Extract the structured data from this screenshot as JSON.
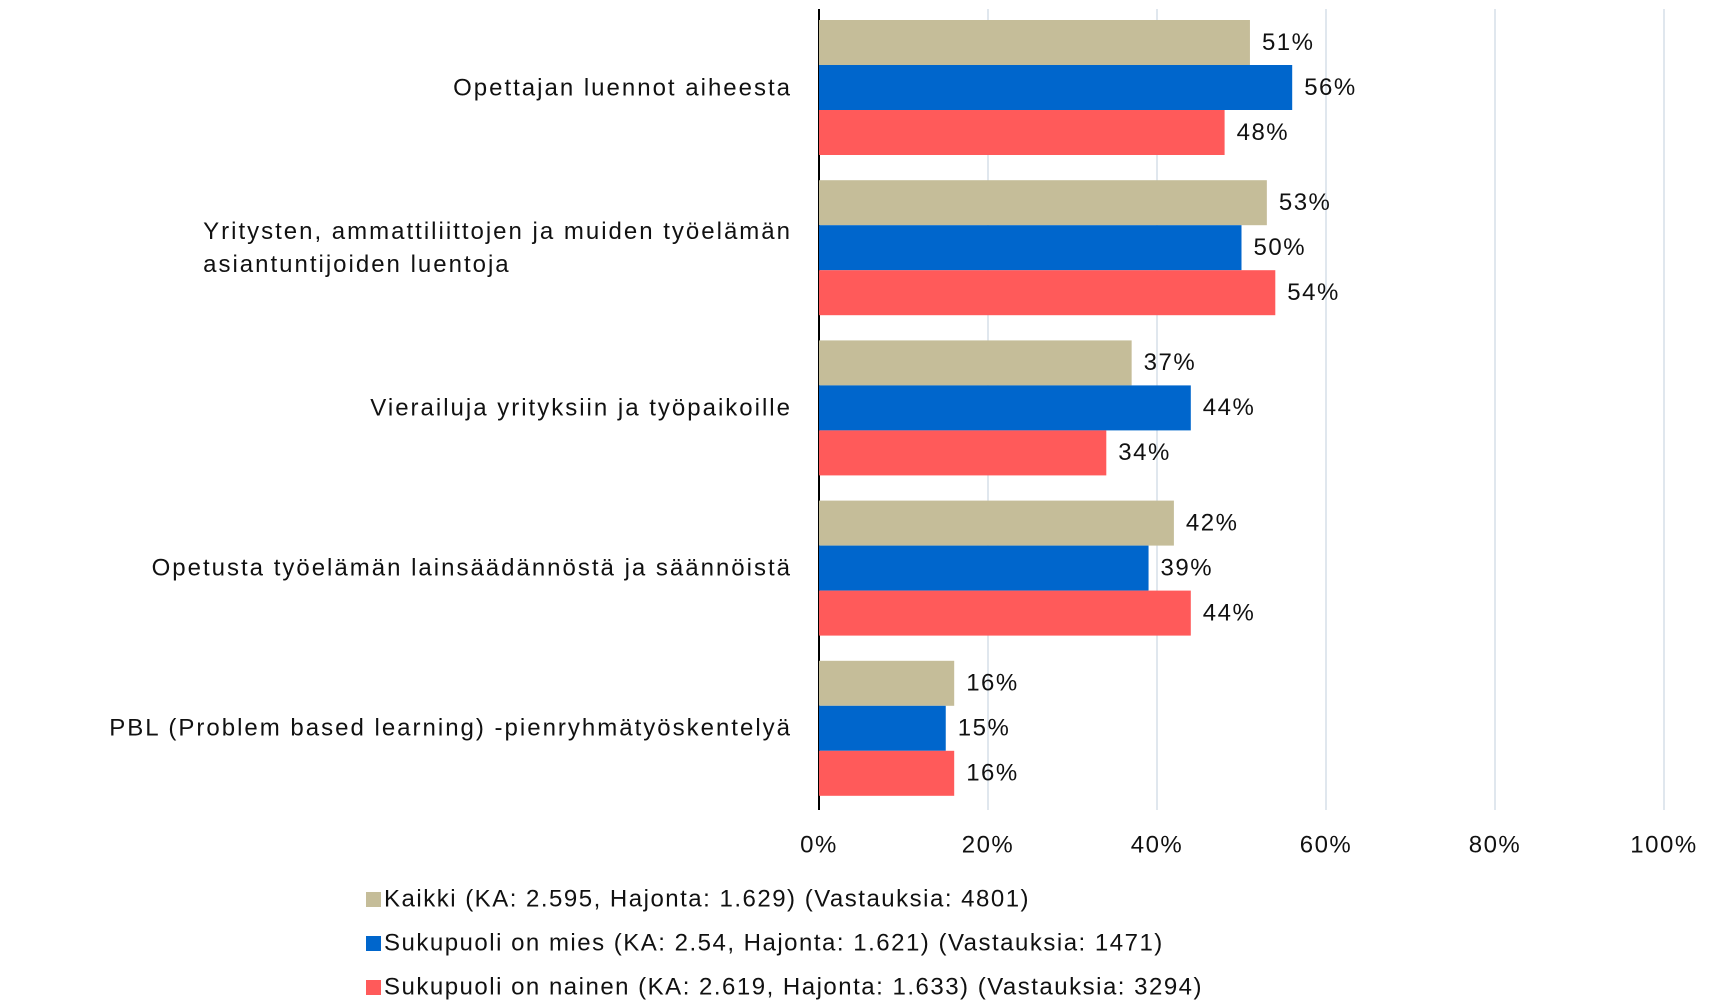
{
  "chart_data": {
    "type": "bar",
    "orientation": "horizontal",
    "categories": [
      "Opettajan luennot aiheesta",
      "Yritysten, ammattiliittojen ja muiden työelämän\nasiantuntijoiden luentoja",
      "Vierailuja yrityksiin ja työpaikoille",
      "Opetusta työelämän lainsäädännöstä ja säännöistä",
      "PBL (Problem based learning) -pienryhmätyöskentelyä"
    ],
    "series": [
      {
        "name": "Kaikki (KA: 2.595, Hajonta: 1.629) (Vastauksia: 4801)",
        "color": "#c5bd99",
        "values": [
          51,
          53,
          37,
          42,
          16
        ],
        "value_labels": [
          "51%",
          "53%",
          "37%",
          "42%",
          "16%"
        ]
      },
      {
        "name": "Sukupuoli on mies (KA: 2.54, Hajonta: 1.621) (Vastauksia: 1471)",
        "color": "#0066cc",
        "values": [
          56,
          50,
          44,
          39,
          15
        ],
        "value_labels": [
          "56%",
          "50%",
          "44%",
          "39%",
          "15%"
        ]
      },
      {
        "name": "Sukupuoli on nainen (KA: 2.619, Hajonta: 1.633) (Vastauksia: 3294)",
        "color": "#ff5a5a",
        "values": [
          48,
          54,
          34,
          44,
          16
        ],
        "value_labels": [
          "48%",
          "54%",
          "34%",
          "44%",
          "16%"
        ]
      }
    ],
    "xlim": [
      0,
      100
    ],
    "xticks": [
      {
        "value": 0,
        "label": "0%"
      },
      {
        "value": 20,
        "label": "20%"
      },
      {
        "value": 40,
        "label": "40%"
      },
      {
        "value": 60,
        "label": "60%"
      },
      {
        "value": 80,
        "label": "80%"
      },
      {
        "value": 100,
        "label": "100%"
      }
    ],
    "grid": true,
    "legend": "bottom"
  }
}
